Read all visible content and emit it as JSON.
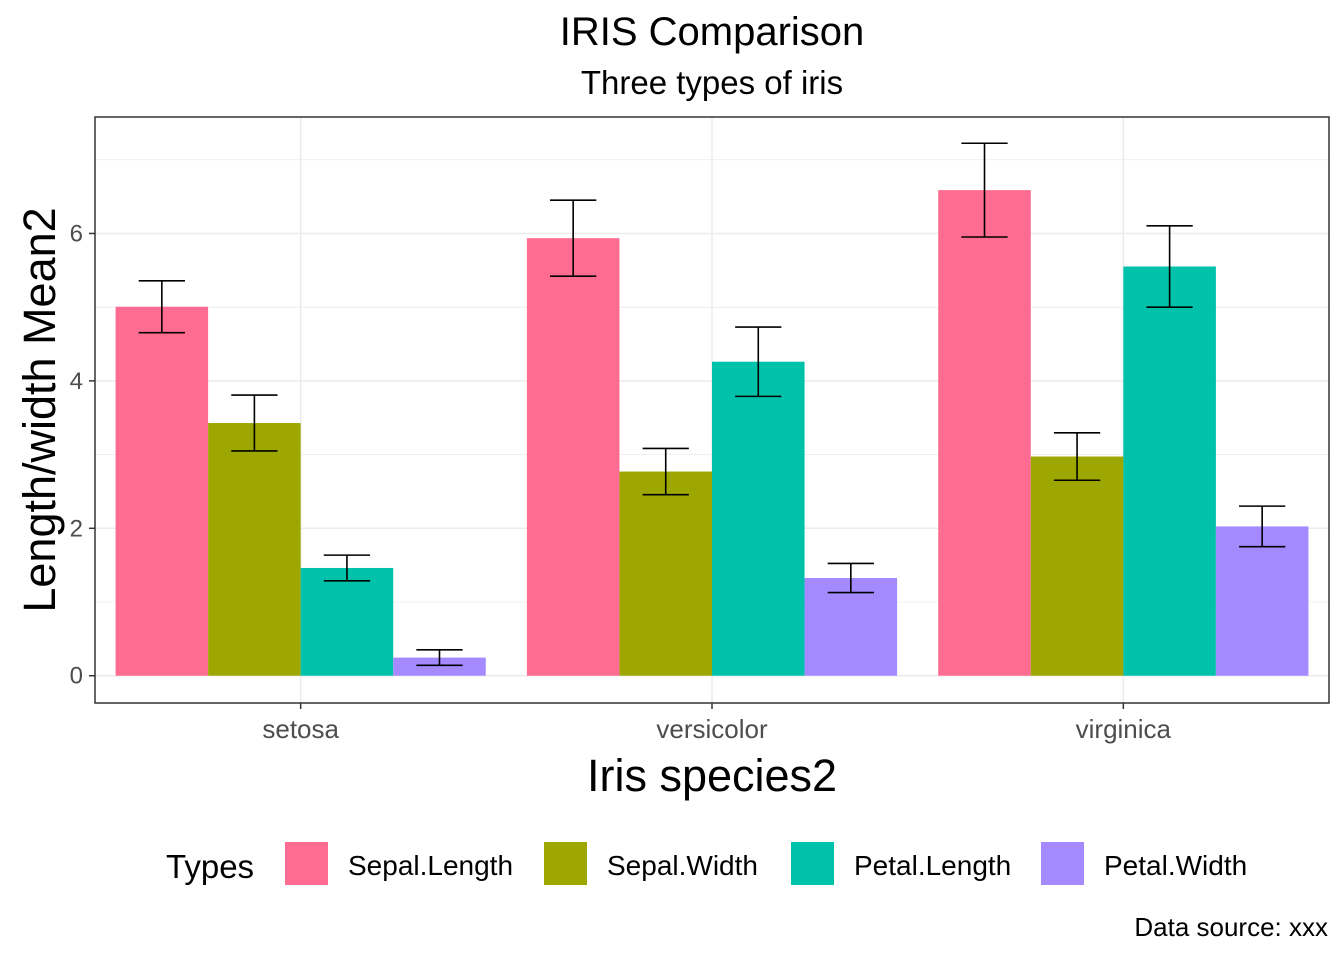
{
  "chart_data": {
    "type": "bar",
    "title": "IRIS Comparison",
    "subtitle": "Three types of iris",
    "caption": "Data source: xxx",
    "xlabel": "Iris species2",
    "ylabel": "Length/width Mean2",
    "categories": [
      "setosa",
      "versicolor",
      "virginica"
    ],
    "ylim": [
      -0.37,
      7.58
    ],
    "yticks": [
      0,
      2,
      4,
      6
    ],
    "grid": true,
    "legend": {
      "title": "Types",
      "position": "bottom"
    },
    "series": [
      {
        "name": "Sepal.Length",
        "color": "#FF6C91",
        "values": [
          5.006,
          5.936,
          6.588
        ],
        "error_low": [
          4.654,
          5.42,
          5.952
        ],
        "error_high": [
          5.358,
          6.452,
          7.224
        ]
      },
      {
        "name": "Sepal.Width",
        "color": "#9DA700",
        "values": [
          3.428,
          2.77,
          2.974
        ],
        "error_low": [
          3.049,
          2.456,
          2.652
        ],
        "error_high": [
          3.807,
          3.084,
          3.296
        ]
      },
      {
        "name": "Petal.Length",
        "color": "#00C1AA",
        "values": [
          1.462,
          4.26,
          5.552
        ],
        "error_low": [
          1.288,
          3.79,
          5.0
        ],
        "error_high": [
          1.636,
          4.73,
          6.104
        ]
      },
      {
        "name": "Petal.Width",
        "color": "#A58AFF",
        "values": [
          0.246,
          1.326,
          2.026
        ],
        "error_low": [
          0.141,
          1.128,
          1.751
        ],
        "error_high": [
          0.351,
          1.524,
          2.301
        ]
      }
    ]
  }
}
